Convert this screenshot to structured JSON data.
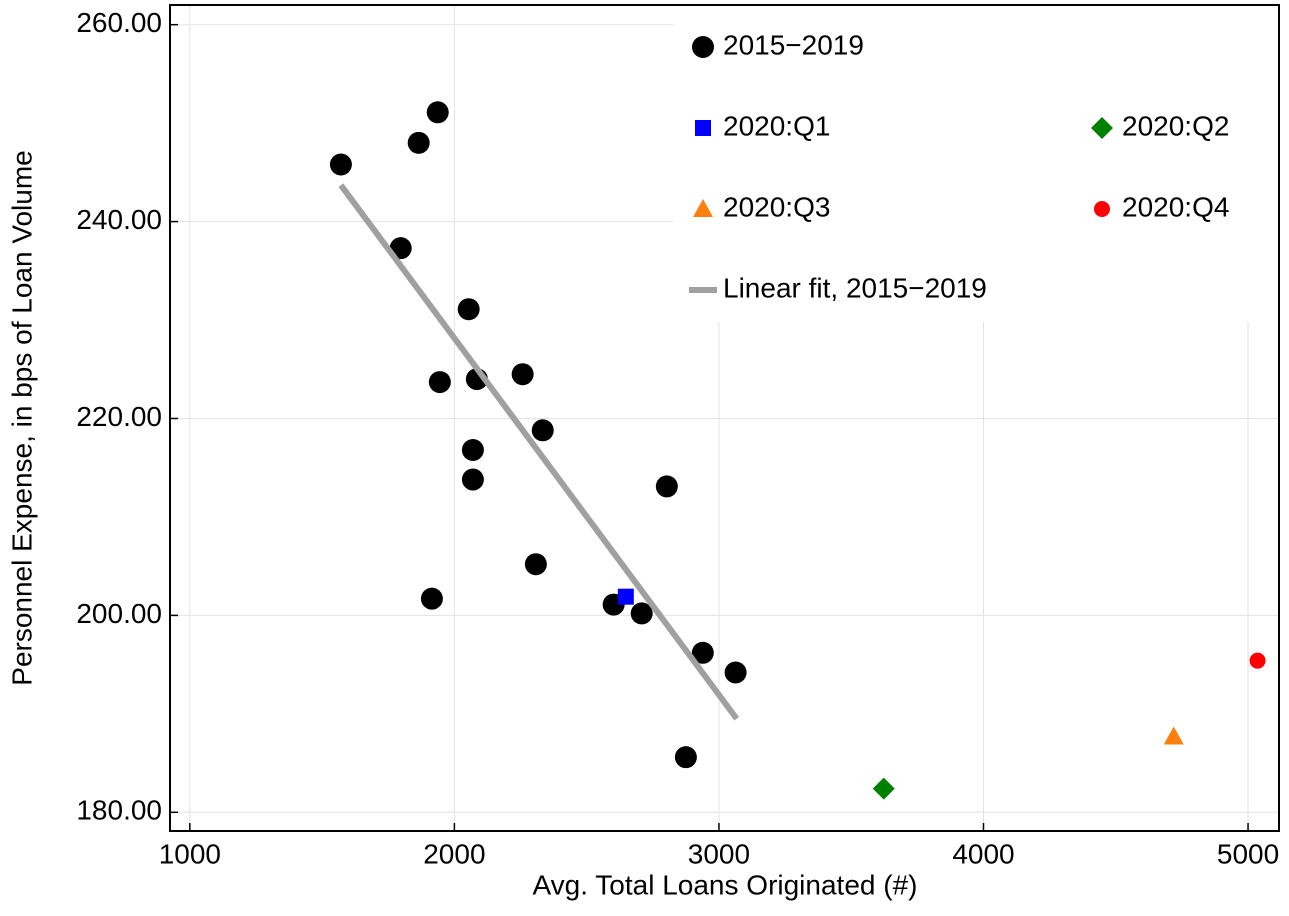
{
  "chart_data": {
    "type": "scatter",
    "x_label": "Avg. Total Loans Originated (#)",
    "y_label": "Personnel Expense, in bps of Loan Volume",
    "xlim": [
      925,
      5117
    ],
    "ylim": [
      178.1,
      262
    ],
    "xticks": [
      1000,
      2000,
      3000,
      4000,
      5000
    ],
    "yticks": [
      {
        "value": 180,
        "label": "180.00"
      },
      {
        "value": 200,
        "label": "200.00"
      },
      {
        "value": 220,
        "label": "220.00"
      },
      {
        "value": 240,
        "label": "240.00"
      },
      {
        "value": 260,
        "label": "260.00"
      }
    ],
    "grid": true,
    "legend": "upper right",
    "series": [
      {
        "name": "2015−2019",
        "color": "#000000",
        "marker": "circle",
        "x": [
          1571,
          1865,
          1937,
          1797,
          2054,
          1945,
          2085,
          2258,
          2070,
          2334,
          2070,
          2803,
          2308,
          1915,
          2602,
          2708,
          2939,
          3063,
          2875
        ],
        "values": [
          245.8,
          248.0,
          251.1,
          237.3,
          231.1,
          223.7,
          224.0,
          224.5,
          216.8,
          218.8,
          213.8,
          213.1,
          205.2,
          201.7,
          201.1,
          200.2,
          196.2,
          194.2,
          185.6
        ]
      },
      {
        "name": "2020:Q1",
        "color": "#0000ff",
        "marker": "square",
        "x": [
          2648
        ],
        "values": [
          201.9
        ]
      },
      {
        "name": "2020:Q2",
        "color": "#008000",
        "marker": "diamond",
        "x": [
          3623
        ],
        "values": [
          182.4
        ]
      },
      {
        "name": "2020:Q3",
        "color": "#ff7f0e",
        "marker": "triangle",
        "x": [
          4719
        ],
        "values": [
          187.7
        ]
      },
      {
        "name": "2020:Q4",
        "color": "#ff0000",
        "marker": "smallcircle",
        "x": [
          5036
        ],
        "values": [
          195.4
        ]
      },
      {
        "name": "Linear fit, 2015−2019",
        "color": "#a0a0a0",
        "marker": "line",
        "x": [
          1571,
          3067
        ],
        "values": [
          243.7,
          189.5
        ]
      }
    ]
  }
}
